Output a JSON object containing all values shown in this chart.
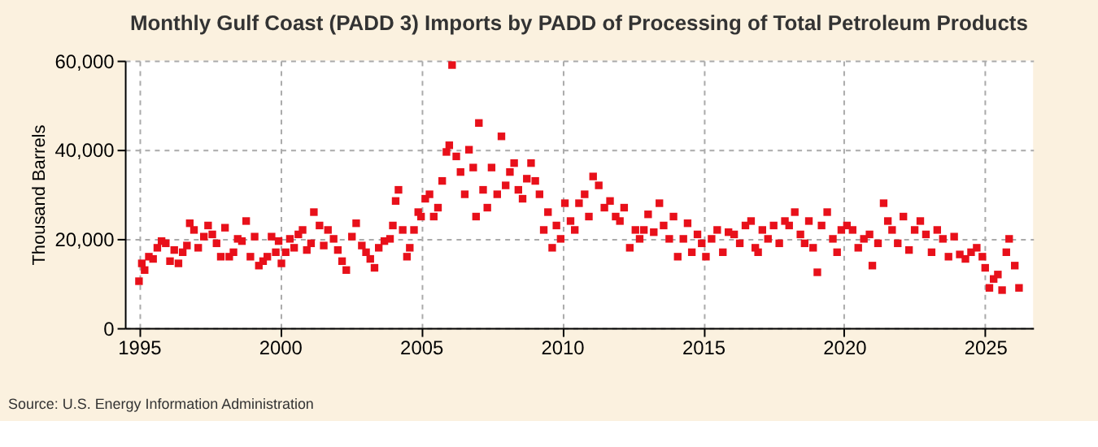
{
  "chart_data": {
    "type": "scatter",
    "title": "Monthly Gulf Coast (PADD 3) Imports by PADD of Processing of Total Petroleum Products",
    "ylabel": "Thousand Barrels",
    "annotations": [
      "Source: U.S. Energy Information Administration"
    ],
    "x": [
      1995.0,
      1995.1,
      1995.2,
      1995.35,
      1995.5,
      1995.65,
      1995.8,
      1995.95,
      1996.1,
      1996.25,
      1996.4,
      1996.55,
      1996.7,
      1996.8,
      1996.95,
      1997.1,
      1997.3,
      1997.45,
      1997.6,
      1997.75,
      1997.9,
      1998.05,
      1998.2,
      1998.35,
      1998.5,
      1998.65,
      1998.8,
      1998.95,
      1999.1,
      1999.25,
      1999.4,
      1999.55,
      1999.7,
      1999.85,
      1999.95,
      2000.05,
      2000.2,
      2000.35,
      2000.5,
      2000.65,
      2000.8,
      2000.95,
      2001.1,
      2001.2,
      2001.4,
      2001.55,
      2001.7,
      2001.9,
      2002.05,
      2002.2,
      2002.35,
      2002.55,
      2002.7,
      2002.9,
      2003.05,
      2003.2,
      2003.35,
      2003.5,
      2003.7,
      2003.9,
      2004.0,
      2004.1,
      2004.2,
      2004.35,
      2004.5,
      2004.6,
      2004.75,
      2004.9,
      2005.0,
      2005.15,
      2005.3,
      2005.45,
      2005.6,
      2005.75,
      2005.9,
      2006.0,
      2006.1,
      2006.25,
      2006.4,
      2006.55,
      2006.7,
      2006.85,
      2006.95,
      2007.05,
      2007.2,
      2007.35,
      2007.5,
      2007.7,
      2007.85,
      2008.0,
      2008.15,
      2008.3,
      2008.45,
      2008.6,
      2008.75,
      2008.9,
      2009.05,
      2009.2,
      2009.35,
      2009.5,
      2009.65,
      2009.8,
      2009.95,
      2010.1,
      2010.3,
      2010.45,
      2010.6,
      2010.8,
      2010.95,
      2011.1,
      2011.3,
      2011.5,
      2011.7,
      2011.9,
      2012.05,
      2012.2,
      2012.4,
      2012.6,
      2012.75,
      2012.9,
      2013.05,
      2013.25,
      2013.45,
      2013.6,
      2013.8,
      2013.95,
      2014.1,
      2014.3,
      2014.45,
      2014.6,
      2014.8,
      2014.95,
      2015.1,
      2015.3,
      2015.5,
      2015.7,
      2015.9,
      2016.1,
      2016.3,
      2016.5,
      2016.7,
      2016.85,
      2016.95,
      2017.1,
      2017.3,
      2017.5,
      2017.7,
      2017.9,
      2018.05,
      2018.25,
      2018.45,
      2018.6,
      2018.75,
      2018.9,
      2019.05,
      2019.2,
      2019.4,
      2019.6,
      2019.75,
      2019.9,
      2020.1,
      2020.3,
      2020.5,
      2020.7,
      2020.9,
      2021.0,
      2021.2,
      2021.4,
      2021.55,
      2021.7,
      2021.9,
      2022.1,
      2022.3,
      2022.5,
      2022.7,
      2022.9,
      2023.1,
      2023.3,
      2023.5,
      2023.7,
      2023.9,
      2024.1,
      2024.3,
      2024.5,
      2024.7,
      2024.9,
      2025.0,
      2025.15,
      2025.3,
      2025.45,
      2025.6,
      2025.75,
      2025.85,
      2026.05,
      2026.2
    ],
    "values": [
      10500,
      14500,
      13000,
      16000,
      15500,
      18000,
      19500,
      19000,
      15000,
      17500,
      14500,
      17000,
      18500,
      23500,
      22000,
      18000,
      20500,
      23000,
      21000,
      19000,
      16000,
      22500,
      16000,
      17000,
      20000,
      19500,
      24000,
      16000,
      20500,
      14000,
      15000,
      16000,
      20500,
      17000,
      19500,
      14500,
      17000,
      20000,
      18000,
      21000,
      22000,
      17500,
      19000,
      26000,
      23000,
      18500,
      22000,
      20000,
      17500,
      15000,
      13000,
      20500,
      23500,
      18500,
      17000,
      15500,
      13500,
      18000,
      19500,
      20000,
      23000,
      28500,
      31000,
      22000,
      16000,
      18000,
      22000,
      26000,
      25000,
      29000,
      30000,
      25000,
      27000,
      33000,
      39500,
      41000,
      59000,
      38500,
      35000,
      30000,
      40000,
      36000,
      25000,
      46000,
      31000,
      27000,
      36000,
      30000,
      43000,
      32000,
      35000,
      37000,
      31000,
      29000,
      33500,
      37000,
      33000,
      30000,
      22000,
      26000,
      18000,
      23000,
      20000,
      28000,
      24000,
      22000,
      28000,
      30000,
      25000,
      34000,
      32000,
      27000,
      28500,
      25000,
      24000,
      27000,
      18000,
      22000,
      20000,
      22000,
      25500,
      21500,
      28000,
      23000,
      20000,
      25000,
      16000,
      20000,
      23500,
      17000,
      21000,
      19000,
      16000,
      20000,
      22000,
      17000,
      21500,
      21000,
      19000,
      23000,
      24000,
      18000,
      17000,
      22000,
      20000,
      23000,
      19000,
      24000,
      23000,
      26000,
      21000,
      19000,
      24000,
      18000,
      12500,
      23000,
      26000,
      20000,
      17000,
      22000,
      23000,
      22000,
      18000,
      20000,
      21000,
      14000,
      19000,
      28000,
      24000,
      22000,
      19000,
      25000,
      17500,
      22000,
      24000,
      21000,
      17000,
      22000,
      20000,
      16000,
      20500,
      16500,
      15500,
      17000,
      18000,
      16000,
      13500,
      9000,
      11000,
      12000,
      8500,
      17000,
      20000,
      14000,
      9000
    ],
    "color": "#e8101a",
    "marker": "square",
    "xlim": [
      1994.5,
      2026.7
    ],
    "xticks": [
      1995,
      2000,
      2005,
      2010,
      2015,
      2020,
      2025
    ],
    "ylim": [
      0,
      60000
    ],
    "yticks": [
      0,
      {
        "value": 20000,
        "label": "20,000"
      },
      {
        "value": 40000,
        "label": "40,000"
      },
      {
        "value": 60000,
        "label": "60,000"
      }
    ],
    "grid": true
  }
}
